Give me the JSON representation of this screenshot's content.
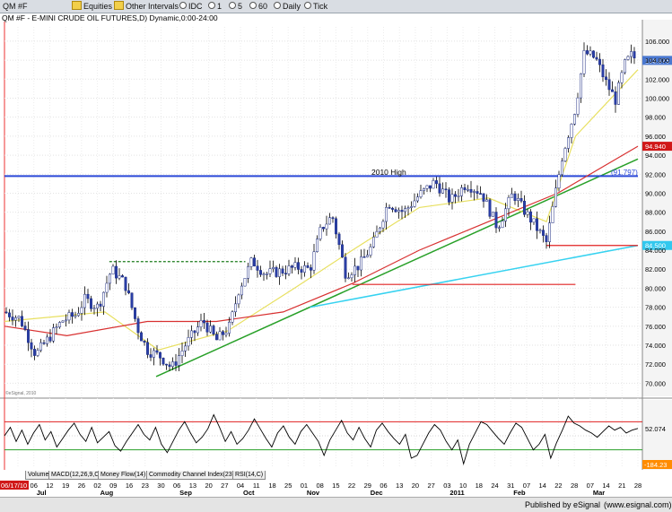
{
  "toolbar": {
    "symbol": "QM #F",
    "equities": "Equities",
    "other_intervals": "Other Intervals",
    "radio": [
      "IDC",
      "1",
      "5",
      "60",
      "Daily",
      "Tick"
    ]
  },
  "chart_title": "QM #F - E-MINI CRUDE OIL FUTURES,D) Dynamic,0:00-24:00",
  "price_axis_ticks": [
    106,
    104,
    102,
    100,
    98,
    96,
    94,
    92,
    90,
    88,
    86,
    84,
    82,
    80,
    78,
    76,
    74,
    72,
    70
  ],
  "price_axis_labels": [
    "106.000",
    "104.000",
    "102.000",
    "100.000",
    "98.000",
    "96.000",
    "94.000",
    "92.000",
    "90.000",
    "88.000",
    "86.000",
    "84.000",
    "82.000",
    "80.000",
    "78.000",
    "76.000",
    "74.000",
    "72.000",
    "70.000"
  ],
  "price_tags": [
    {
      "text": "103.975",
      "value": 103.975,
      "color": "#4a78d0"
    },
    {
      "text": "94.940",
      "value": 94.94,
      "color": "#d01818"
    },
    {
      "text": "84.500",
      "value": 84.5,
      "color": "#32c8ee"
    }
  ],
  "hline_2010_high": {
    "label": "2010 High",
    "value": 91.797,
    "value_label": "(91.797)"
  },
  "watermark": "©eSignal, 2010",
  "osc_labels": [
    {
      "text": "52.074",
      "color": "#000000"
    },
    {
      "text": "-184.23",
      "color": "#ff8c00"
    }
  ],
  "tabs": [
    "Volume",
    "MACD(12,26,9,C)",
    "Money Flow(14)",
    "Commodity Channel Index(23,C)",
    "RSI(14,C)"
  ],
  "date_axis": {
    "current_date": "06/17/10",
    "days": [
      "8",
      "06",
      "12",
      "19",
      "26",
      "02",
      "09",
      "16",
      "23",
      "30",
      "06",
      "13",
      "20",
      "27",
      "04",
      "11",
      "18",
      "25",
      "01",
      "08",
      "15",
      "22",
      "29",
      "06",
      "13",
      "20",
      "27",
      "03",
      "10",
      "18",
      "24",
      "31",
      "07",
      "14",
      "22",
      "28",
      "07",
      "14",
      "21",
      "28"
    ],
    "months": [
      "Jul",
      "Aug",
      "Sep",
      "Oct",
      "Nov",
      "Dec",
      "2011",
      "Feb",
      "Mar"
    ]
  },
  "status": {
    "left": "Published by eSignal",
    "right": "(www.esignal.com)"
  },
  "chart_data": {
    "type": "candlestick",
    "title": "QM #F - E-MINI CRUDE OIL FUTURES,D) Dynamic,0:00-24:00",
    "ylim": [
      69,
      107.5
    ],
    "date_range": [
      "2010-06-17",
      "2011-03-28"
    ],
    "close_path": [
      [
        "2010-06-17",
        77.5
      ],
      [
        "2010-06-24",
        76.8
      ],
      [
        "2010-07-01",
        73.0
      ],
      [
        "2010-07-07",
        74.8
      ],
      [
        "2010-07-13",
        76.6
      ],
      [
        "2010-07-19",
        77.2
      ],
      [
        "2010-07-23",
        78.8
      ],
      [
        "2010-07-29",
        78.0
      ],
      [
        "2010-08-04",
        82.0
      ],
      [
        "2010-08-10",
        80.5
      ],
      [
        "2010-08-16",
        75.6
      ],
      [
        "2010-08-20",
        73.5
      ],
      [
        "2010-08-26",
        72.8
      ],
      [
        "2010-08-31",
        71.6
      ],
      [
        "2010-09-06",
        74.0
      ],
      [
        "2010-09-14",
        76.6
      ],
      [
        "2010-09-20",
        74.5
      ],
      [
        "2010-09-26",
        76.0
      ],
      [
        "2010-09-30",
        79.8
      ],
      [
        "2010-10-06",
        82.9
      ],
      [
        "2010-10-12",
        81.5
      ],
      [
        "2010-10-19",
        81.8
      ],
      [
        "2010-10-26",
        82.2
      ],
      [
        "2010-11-01",
        82.0
      ],
      [
        "2010-11-06",
        86.3
      ],
      [
        "2010-11-11",
        87.6
      ],
      [
        "2010-11-17",
        81.5
      ],
      [
        "2010-11-23",
        82.4
      ],
      [
        "2010-11-29",
        84.5
      ],
      [
        "2010-12-06",
        89.0
      ],
      [
        "2010-12-13",
        88.0
      ],
      [
        "2010-12-20",
        89.8
      ],
      [
        "2010-12-27",
        91.2
      ],
      [
        "2011-01-03",
        89.2
      ],
      [
        "2011-01-10",
        91.0
      ],
      [
        "2011-01-17",
        90.0
      ],
      [
        "2011-01-24",
        86.4
      ],
      [
        "2011-01-31",
        90.0
      ],
      [
        "2011-02-04",
        88.5
      ],
      [
        "2011-02-09",
        86.9
      ],
      [
        "2011-02-15",
        84.8
      ],
      [
        "2011-02-22",
        93.8
      ],
      [
        "2011-02-28",
        99.0
      ],
      [
        "2011-03-04",
        104.8
      ],
      [
        "2011-03-09",
        104.2
      ],
      [
        "2011-03-14",
        101.5
      ],
      [
        "2011-03-18",
        99.8
      ],
      [
        "2011-03-22",
        103.5
      ],
      [
        "2011-03-25",
        104.5
      ],
      [
        "2011-03-28",
        103.975
      ]
    ],
    "moving_averages": [
      {
        "color": "#e8e060",
        "points": [
          [
            "2010-06-17",
            76.5
          ],
          [
            "2010-08-01",
            77.5
          ],
          [
            "2010-08-25",
            73.5
          ],
          [
            "2010-09-25",
            75.5
          ],
          [
            "2010-10-25",
            80.0
          ],
          [
            "2010-11-20",
            84.0
          ],
          [
            "2010-12-20",
            88.5
          ],
          [
            "2011-01-20",
            89.5
          ],
          [
            "2011-02-15",
            87.0
          ],
          [
            "2011-02-28",
            96.0
          ],
          [
            "2011-03-28",
            103.0
          ]
        ]
      },
      {
        "color": "#d83030",
        "points": [
          [
            "2010-06-17",
            76.0
          ],
          [
            "2010-07-15",
            75.0
          ],
          [
            "2010-08-20",
            76.5
          ],
          [
            "2010-09-20",
            76.5
          ],
          [
            "2010-10-20",
            77.5
          ],
          [
            "2010-11-20",
            80.5
          ],
          [
            "2010-12-20",
            84.0
          ],
          [
            "2011-01-20",
            87.0
          ],
          [
            "2011-02-20",
            90.0
          ],
          [
            "2011-03-28",
            94.94
          ]
        ]
      }
    ],
    "trendlines": [
      {
        "color": "#28a028",
        "from": [
          "2010-08-24",
          70.7
        ],
        "to": [
          "2011-03-28",
          93.6
        ]
      },
      {
        "color": "#36d2f0",
        "from": [
          "2010-11-01",
          78.0
        ],
        "to": [
          "2011-03-28",
          84.5
        ]
      },
      {
        "color": "#2a48d8",
        "from": [
          "2010-06-17",
          91.797
        ],
        "to": [
          "2011-03-28",
          91.797
        ]
      }
    ],
    "support_lines": [
      {
        "color": "#e02020",
        "value": 80.4,
        "from": "2010-11-20",
        "to": "2011-02-28"
      },
      {
        "color": "#e02020",
        "value": 84.5,
        "from": "2011-02-15",
        "to": "2011-03-28"
      },
      {
        "color": "#1a7a1a",
        "value": 82.8,
        "from": "2010-08-03",
        "to": "2010-10-03"
      }
    ],
    "oscillator": {
      "upper_level": 100,
      "zero_level": 0,
      "lower_level": -100,
      "last": 52.074,
      "values": [
        0,
        60,
        -40,
        40,
        -60,
        20,
        80,
        -30,
        30,
        -80,
        -20,
        40,
        90,
        10,
        -40,
        60,
        -50,
        -10,
        30,
        -70,
        -110,
        -40,
        20,
        80,
        10,
        -30,
        60,
        -60,
        -120,
        -40,
        40,
        100,
        20,
        -50,
        -10,
        50,
        150,
        60,
        -40,
        30,
        -60,
        -20,
        40,
        120,
        50,
        -20,
        -80,
        20,
        70,
        -10,
        -60,
        30,
        80,
        20,
        -40,
        -140,
        -30,
        40,
        110,
        20,
        -30,
        60,
        -20,
        -80,
        40,
        90,
        30,
        -20,
        -60,
        10,
        -160,
        -140,
        -60,
        20,
        80,
        40,
        -40,
        -100,
        -30,
        -200,
        -60,
        20,
        100,
        80,
        30,
        -20,
        -60,
        20,
        90,
        60,
        -20,
        -100,
        -60,
        10,
        -160,
        -50,
        40,
        140,
        90,
        70,
        40,
        20,
        -10,
        30,
        70,
        40,
        60,
        20,
        40,
        52.074
      ]
    },
    "xlabel": "",
    "ylabel": ""
  }
}
